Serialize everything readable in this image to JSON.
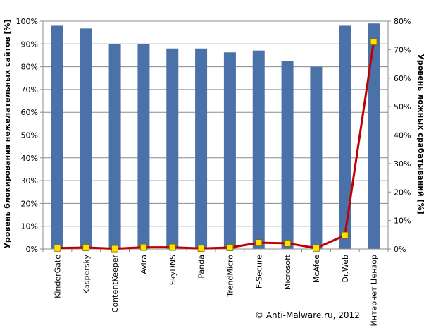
{
  "chart_data": {
    "type": "bar",
    "categories": [
      "KinderGate",
      "Kaspersky",
      "ContentKeeper",
      "Avira",
      "SkyDNS",
      "Panda",
      "TrendMicro",
      "F-Secure",
      "Microsoft",
      "McAfee",
      "Dr.Web",
      "Интернет Цензор"
    ],
    "series": [
      {
        "type": "bar",
        "axis": "left",
        "color": "#4a72a8",
        "values": [
          98,
          96.8,
          90,
          90,
          88,
          88,
          86.3,
          87.1,
          82.5,
          80,
          98,
          99
        ]
      },
      {
        "type": "line",
        "axis": "right",
        "color": "#c00000",
        "marker_color": "#ffe000",
        "values": [
          0.3,
          0.5,
          0.1,
          0.6,
          0.6,
          0.2,
          0.5,
          2.2,
          2.0,
          0.3,
          4.8,
          72.8
        ]
      }
    ],
    "ylabel": "Уровень блокирования нежелательных сайтов [%]",
    "ylabel_right": "Уровень ложных срабатываний [%]",
    "ylim": [
      0,
      100
    ],
    "ylim_right": [
      0,
      80
    ],
    "yticks": [
      "0%",
      "10%",
      "20%",
      "30%",
      "40%",
      "50%",
      "60%",
      "70%",
      "80%",
      "90%",
      "100%"
    ],
    "yticks_right": [
      "0%",
      "10%",
      "20%",
      "30%",
      "40%",
      "50%",
      "60%",
      "70%",
      "80%"
    ],
    "grid": true,
    "legend": "none"
  },
  "footer": {
    "copyright": "© Anti-Malware.ru,  2012"
  }
}
